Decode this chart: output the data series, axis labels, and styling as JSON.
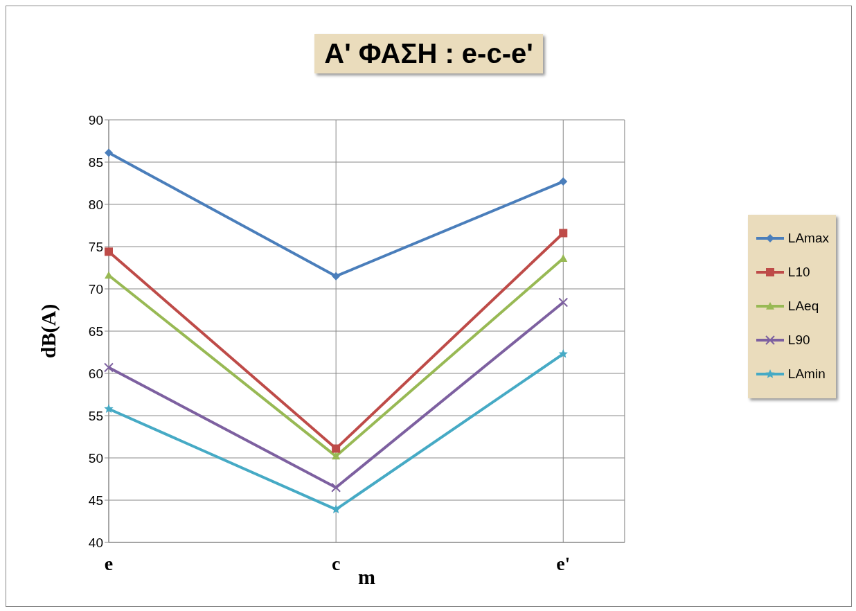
{
  "chart_data": {
    "type": "line",
    "title": "Α' ΦΑΣΗ : e-c-e'",
    "xlabel": "m",
    "ylabel": "dB(A)",
    "categories": [
      "e",
      "c",
      "e'"
    ],
    "series": [
      {
        "name": "LAmax",
        "color": "#4a7ebb",
        "marker": "diamond",
        "values": [
          86.1,
          71.5,
          82.7
        ]
      },
      {
        "name": "L10",
        "color": "#be4b48",
        "marker": "square",
        "values": [
          74.4,
          51.1,
          76.6
        ]
      },
      {
        "name": "LAeq",
        "color": "#98b954",
        "marker": "triangle",
        "values": [
          71.6,
          50.2,
          73.6
        ]
      },
      {
        "name": "L90",
        "color": "#7d60a0",
        "marker": "cross",
        "values": [
          60.7,
          46.5,
          68.4
        ]
      },
      {
        "name": "LAmin",
        "color": "#46aac5",
        "marker": "star",
        "values": [
          55.8,
          43.9,
          62.3
        ]
      }
    ],
    "ylim": [
      40,
      90
    ],
    "yticks": [
      40,
      45,
      50,
      55,
      60,
      65,
      70,
      75,
      80,
      85,
      90
    ],
    "grid": true,
    "legend": "right",
    "line_style": "solid"
  }
}
